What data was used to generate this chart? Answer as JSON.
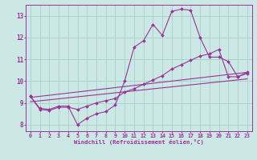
{
  "xlabel": "Windchill (Refroidissement éolien,°C)",
  "xlim": [
    -0.5,
    23.5
  ],
  "ylim": [
    7.7,
    13.5
  ],
  "xticks": [
    0,
    1,
    2,
    3,
    4,
    5,
    6,
    7,
    8,
    9,
    10,
    11,
    12,
    13,
    14,
    15,
    16,
    17,
    18,
    19,
    20,
    21,
    22,
    23
  ],
  "yticks": [
    8,
    9,
    10,
    11,
    12,
    13
  ],
  "bg_color": "#cce8e4",
  "line_color": "#993399",
  "grid_color": "#aad4cc",
  "series": [
    {
      "x": [
        0,
        1,
        2,
        3,
        4,
        5,
        6,
        7,
        8,
        9,
        10,
        11,
        12,
        13,
        14,
        15,
        16,
        17,
        18,
        19,
        20,
        21,
        22,
        23
      ],
      "y": [
        9.3,
        8.75,
        8.7,
        8.85,
        8.85,
        8.0,
        8.3,
        8.5,
        8.6,
        8.9,
        10.0,
        11.55,
        11.85,
        12.6,
        12.1,
        13.2,
        13.3,
        13.25,
        12.0,
        11.1,
        11.1,
        10.9,
        10.2,
        10.4
      ],
      "marker": true
    },
    {
      "x": [
        0,
        1,
        2,
        3,
        4,
        5,
        6,
        7,
        8,
        9,
        10,
        11,
        12,
        13,
        14,
        15,
        16,
        17,
        18,
        19,
        20,
        21,
        22,
        23
      ],
      "y": [
        9.3,
        8.7,
        8.65,
        8.8,
        8.8,
        8.7,
        8.85,
        9.0,
        9.1,
        9.2,
        9.5,
        9.65,
        9.85,
        10.05,
        10.25,
        10.55,
        10.75,
        10.95,
        11.15,
        11.25,
        11.45,
        10.2,
        10.2,
        10.35
      ],
      "marker": true
    },
    {
      "x": [
        0,
        23
      ],
      "y": [
        9.25,
        10.4
      ],
      "marker": false
    },
    {
      "x": [
        0,
        23
      ],
      "y": [
        9.05,
        10.1
      ],
      "marker": false
    }
  ]
}
